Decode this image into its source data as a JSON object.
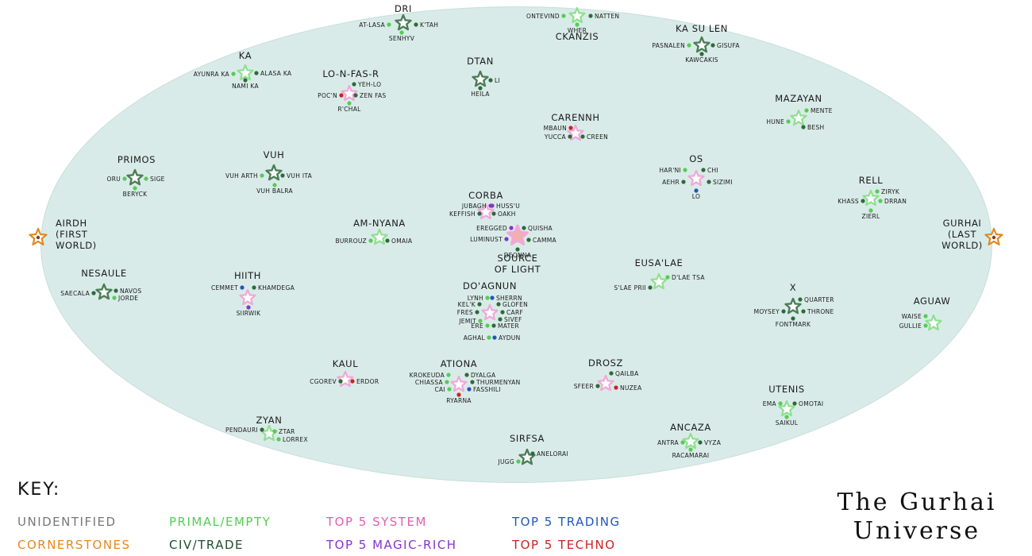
{
  "title": {
    "line1": "The Gurhai",
    "line2": "Universe"
  },
  "key": {
    "heading": "KEY:",
    "items": [
      {
        "label": "UNIDENTIFIED",
        "color": "#777777"
      },
      {
        "label": "PRIMAL/EMPTY",
        "color": "#55cc55"
      },
      {
        "label": "TOP 5 SYSTEM",
        "color": "#e060b0"
      },
      {
        "label": "TOP 5 TRADING",
        "color": "#2255bb"
      },
      {
        "label": "CORNERSTONES",
        "color": "#e08a22"
      },
      {
        "label": "CIV/TRADE",
        "color": "#1f4d2c"
      },
      {
        "label": "TOP 5 MAGIC-RICH",
        "color": "#8833cc"
      },
      {
        "label": "TOP 5 TECHNO",
        "color": "#cc2222"
      }
    ]
  },
  "colors": {
    "primal": "#55cc55",
    "civ": "#2f6a3a",
    "system": "#e070b8",
    "trading": "#2255bb",
    "magic": "#8833cc",
    "techno": "#cc2222",
    "corner": "#e08a22",
    "ring_primal": "#8fe08f",
    "ring_civ": "#4c7d56",
    "ring_system": "#f0a8d8"
  },
  "systems": [
    {
      "id": "dri",
      "name": "Dri",
      "kind": "civ",
      "planets": [
        {
          "name": "At-Lasa",
          "type": "primal"
        },
        {
          "name": "K'tah",
          "type": "civ"
        },
        {
          "name": "Senhyv",
          "type": "primal"
        }
      ]
    },
    {
      "id": "ckanzis",
      "name": "Ckanzis",
      "kind": "primal",
      "planets": [
        {
          "name": "Ontevind",
          "type": "primal"
        },
        {
          "name": "Natten",
          "type": "civ"
        },
        {
          "name": "Wher",
          "type": "primal"
        }
      ]
    },
    {
      "id": "kasulen",
      "name": "Ka Su Len",
      "kind": "civ",
      "planets": [
        {
          "name": "Pasnalen",
          "type": "primal"
        },
        {
          "name": "Gisufa",
          "type": "civ"
        },
        {
          "name": "Kawcakis",
          "type": "civ"
        }
      ]
    },
    {
      "id": "ka",
      "name": "Ka",
      "kind": "primal",
      "planets": [
        {
          "name": "Ayunra Ka",
          "type": "primal"
        },
        {
          "name": "Alasa Ka",
          "type": "civ"
        },
        {
          "name": "Nami Ka",
          "type": "civ"
        }
      ]
    },
    {
      "id": "lonfasr",
      "name": "Lo-N-Fas-R",
      "kind": "system",
      "planets": [
        {
          "name": "Yeh-Lo",
          "type": "civ"
        },
        {
          "name": "Poc'n",
          "type": "techno"
        },
        {
          "name": "Zen Fas",
          "type": "civ"
        },
        {
          "name": "R'chal",
          "type": "primal"
        }
      ]
    },
    {
      "id": "dtan",
      "name": "Dtan",
      "kind": "civ",
      "planets": [
        {
          "name": "Li",
          "type": "civ"
        },
        {
          "name": "Heila",
          "type": "civ"
        }
      ]
    },
    {
      "id": "carennh",
      "name": "Carennh",
      "kind": "system",
      "planets": [
        {
          "name": "Mbaun",
          "type": "techno"
        },
        {
          "name": "Yucca",
          "type": "civ"
        },
        {
          "name": "Creen",
          "type": "civ"
        }
      ]
    },
    {
      "id": "mazayan",
      "name": "Mazayan",
      "kind": "primal",
      "planets": [
        {
          "name": "Mente",
          "type": "primal"
        },
        {
          "name": "Hune",
          "type": "primal"
        },
        {
          "name": "Besh",
          "type": "civ"
        }
      ]
    },
    {
      "id": "primos",
      "name": "Primos",
      "kind": "civ",
      "planets": [
        {
          "name": "Oru",
          "type": "primal"
        },
        {
          "name": "Sige",
          "type": "primal"
        },
        {
          "name": "Beryck",
          "type": "primal"
        }
      ]
    },
    {
      "id": "vuh",
      "name": "Vuh",
      "kind": "civ",
      "planets": [
        {
          "name": "Vuh Arth",
          "type": "primal"
        },
        {
          "name": "Vuh Ita",
          "type": "civ"
        },
        {
          "name": "Vuh Balra",
          "type": "primal"
        }
      ]
    },
    {
      "id": "os",
      "name": "Os",
      "kind": "system",
      "planets": [
        {
          "name": "Har'ni",
          "type": "primal"
        },
        {
          "name": "Chi",
          "type": "civ"
        },
        {
          "name": "Aehr",
          "type": "civ"
        },
        {
          "name": "Sizimi",
          "type": "civ"
        },
        {
          "name": "Lo",
          "type": "trading"
        }
      ]
    },
    {
      "id": "rell",
      "name": "Rell",
      "kind": "primal",
      "planets": [
        {
          "name": "Ziryk",
          "type": "primal"
        },
        {
          "name": "Khass",
          "type": "civ"
        },
        {
          "name": "Drran",
          "type": "primal"
        },
        {
          "name": "Zierl",
          "type": "primal"
        }
      ]
    },
    {
      "id": "corba",
      "name": "Corba",
      "kind": "system",
      "planets": [
        {
          "name": "Jubagh",
          "type": "magic"
        },
        {
          "name": "Huss'u",
          "type": "magic"
        },
        {
          "name": "Keffish",
          "type": "civ"
        },
        {
          "name": "Oakh",
          "type": "civ"
        }
      ]
    },
    {
      "id": "airdh",
      "name": "Airdh (First World)",
      "name_lines": [
        "Airdh",
        "(First",
        "World)"
      ],
      "kind": "corner",
      "planets": []
    },
    {
      "id": "gurhai",
      "name": "Gurhai (Last World)",
      "name_lines": [
        "Gurhai",
        "(Last",
        "World)"
      ],
      "kind": "corner",
      "planets": []
    },
    {
      "id": "amnyana",
      "name": "Am-Nyana",
      "kind": "primal",
      "planets": [
        {
          "name": "Burrouz",
          "type": "primal"
        },
        {
          "name": "Omaia",
          "type": "civ"
        }
      ]
    },
    {
      "id": "source",
      "name": "Source of Light",
      "name_lines": [
        "Source",
        "of Light"
      ],
      "kind": "core",
      "planets": [
        {
          "name": "Eregged",
          "type": "magic"
        },
        {
          "name": "Quisha",
          "type": "civ"
        },
        {
          "name": "Luminust",
          "type": "magic"
        },
        {
          "name": "Camma",
          "type": "civ"
        },
        {
          "name": "Deonna",
          "type": "civ"
        }
      ]
    },
    {
      "id": "eusalae",
      "name": "Eusa'Lae",
      "kind": "primal",
      "planets": [
        {
          "name": "S'lae Prii",
          "type": "civ"
        },
        {
          "name": "D'lae Tsa",
          "type": "primal"
        }
      ]
    },
    {
      "id": "nesaule",
      "name": "Nesaule",
      "kind": "civ",
      "planets": [
        {
          "name": "Saecala",
          "type": "civ"
        },
        {
          "name": "Navos",
          "type": "civ"
        },
        {
          "name": "Jorde",
          "type": "primal"
        }
      ]
    },
    {
      "id": "hiith",
      "name": "Hiith",
      "kind": "system",
      "planets": [
        {
          "name": "Cemmet",
          "type": "trading"
        },
        {
          "name": "Khamdega",
          "type": "civ"
        },
        {
          "name": "Siirwik",
          "type": "magic"
        }
      ]
    },
    {
      "id": "doagnun",
      "name": "Do'Agnun",
      "kind": "system",
      "planets": [
        {
          "name": "Lynh",
          "type": "primal"
        },
        {
          "name": "Sherrn",
          "type": "trading"
        },
        {
          "name": "Kel'k",
          "type": "civ"
        },
        {
          "name": "Glofen",
          "type": "civ"
        },
        {
          "name": "Fres",
          "type": "civ"
        },
        {
          "name": "Carf",
          "type": "civ"
        },
        {
          "name": "Jemit",
          "type": "primal"
        },
        {
          "name": "Sivef",
          "type": "civ"
        },
        {
          "name": "Ere",
          "type": "primal"
        },
        {
          "name": "Mater",
          "type": "civ"
        },
        {
          "name": "Aghal",
          "type": "primal"
        },
        {
          "name": "Aydun",
          "type": "trading"
        }
      ]
    },
    {
      "id": "x",
      "name": "X",
      "kind": "civ",
      "planets": [
        {
          "name": "Quarter",
          "type": "civ"
        },
        {
          "name": "Moysey",
          "type": "civ"
        },
        {
          "name": "Throne",
          "type": "civ"
        },
        {
          "name": "Fontmark",
          "type": "civ"
        }
      ]
    },
    {
      "id": "aguaw",
      "name": "Aguaw",
      "kind": "primal",
      "planets": [
        {
          "name": "Waise",
          "type": "primal"
        },
        {
          "name": "Gullie",
          "type": "primal"
        }
      ]
    },
    {
      "id": "kaul",
      "name": "Kaul",
      "kind": "system",
      "planets": [
        {
          "name": "Cgorev",
          "type": "civ"
        },
        {
          "name": "Erdor",
          "type": "techno"
        }
      ]
    },
    {
      "id": "ationa",
      "name": "Ationa",
      "kind": "system",
      "planets": [
        {
          "name": "Krokeuda",
          "type": "primal"
        },
        {
          "name": "Dyalga",
          "type": "civ"
        },
        {
          "name": "Chiassa",
          "type": "primal"
        },
        {
          "name": "Thurmenyan",
          "type": "civ"
        },
        {
          "name": "Cai",
          "type": "primal"
        },
        {
          "name": "Fasshili",
          "type": "trading"
        },
        {
          "name": "Ryarna",
          "type": "techno"
        }
      ]
    },
    {
      "id": "drosz",
      "name": "Drosz",
      "kind": "system",
      "planets": [
        {
          "name": "Qailba",
          "type": "civ"
        },
        {
          "name": "Sfeer",
          "type": "civ"
        },
        {
          "name": "Nuzea",
          "type": "techno"
        }
      ]
    },
    {
      "id": "utenis",
      "name": "Utenis",
      "kind": "primal",
      "planets": [
        {
          "name": "Ema",
          "type": "primal"
        },
        {
          "name": "Omotai",
          "type": "civ"
        },
        {
          "name": "Saikul",
          "type": "primal"
        }
      ]
    },
    {
      "id": "zyan",
      "name": "Zyan",
      "kind": "primal",
      "planets": [
        {
          "name": "Pendauri",
          "type": "civ"
        },
        {
          "name": "Ztar",
          "type": "primal"
        },
        {
          "name": "Lorrex",
          "type": "primal"
        }
      ]
    },
    {
      "id": "ancaza",
      "name": "Ancaza",
      "kind": "primal",
      "planets": [
        {
          "name": "Antra",
          "type": "primal"
        },
        {
          "name": "Vyza",
          "type": "civ"
        },
        {
          "name": "Racamarai",
          "type": "primal"
        }
      ]
    },
    {
      "id": "sirfsa",
      "name": "Sirfsa",
      "kind": "civ",
      "planets": [
        {
          "name": "Jugg",
          "type": "primal"
        },
        {
          "name": "Anelorai",
          "type": "civ"
        }
      ]
    }
  ]
}
